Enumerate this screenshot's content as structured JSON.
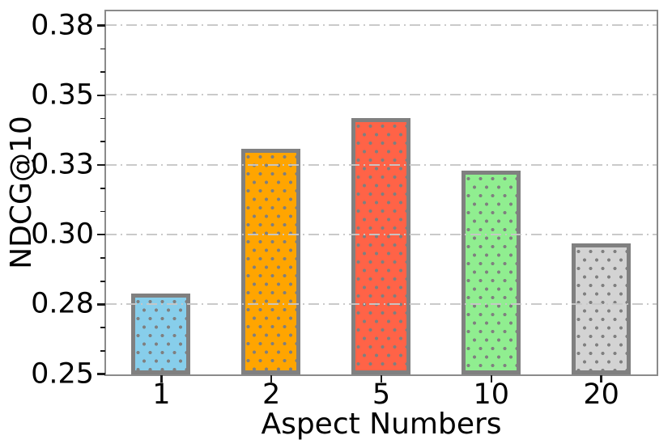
{
  "figure": {
    "background": "#ffffff"
  },
  "chart_data": {
    "type": "bar",
    "title": "",
    "xlabel": "Aspect Numbers",
    "ylabel": "NDCG@10",
    "categories": [
      "1",
      "2",
      "5",
      "10",
      "20"
    ],
    "values": [
      0.279,
      0.331,
      0.342,
      0.323,
      0.297
    ],
    "ylim": [
      0.25,
      0.38
    ],
    "yticks": [
      {
        "value": 0.25,
        "label": "0.25"
      },
      {
        "value": 0.275,
        "label": "0.28"
      },
      {
        "value": 0.3,
        "label": "0.30"
      },
      {
        "value": 0.325,
        "label": "0.33"
      },
      {
        "value": 0.35,
        "label": "0.35"
      },
      {
        "value": 0.375,
        "label": "0.38"
      }
    ],
    "gridlines": {
      "values": [
        0.275,
        0.3,
        0.325,
        0.35,
        0.375
      ],
      "style": "dash-dot",
      "color": "#c7c7c7",
      "position": "on-top-of-bars"
    },
    "bar_style": {
      "colors": [
        "#87CEEB",
        "#FFA500",
        "#FF6347",
        "#90EE90",
        "#D3D3D3"
      ],
      "edge_color": "#808080",
      "hatch": "dots",
      "hatch_color": "#7f7f7f"
    },
    "axis": {
      "spine_color": "#8a8a8a",
      "tick_color": "#1a1a1a",
      "text_color": "#000000",
      "minor_ticks_per_interval": 2,
      "legend": "none",
      "grid": "horizontal"
    }
  }
}
